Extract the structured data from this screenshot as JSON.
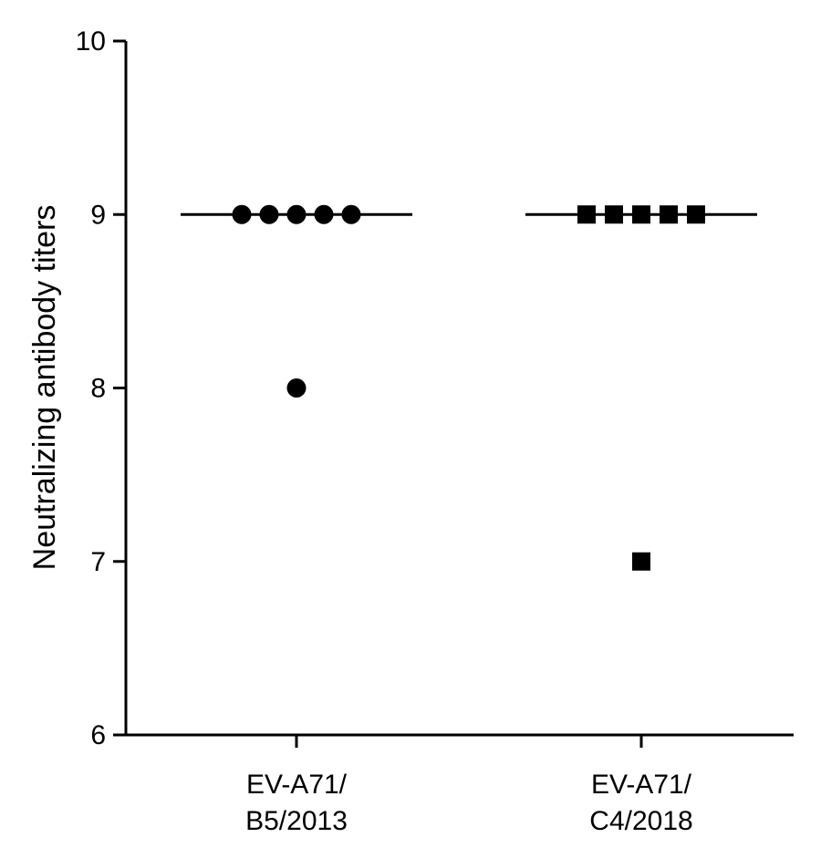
{
  "chart_data": {
    "type": "scatter",
    "title": "",
    "xlabel": "",
    "ylabel": "Neutralizing antibody titers",
    "ylim": [
      6,
      10
    ],
    "yticks": [
      6,
      7,
      8,
      9,
      10
    ],
    "grid": false,
    "legend": "none",
    "categories": [
      {
        "label_lines": [
          "EV-A71/",
          "B5/2013"
        ]
      },
      {
        "label_lines": [
          "EV-A71/",
          "C4/2018"
        ]
      }
    ],
    "series": [
      {
        "category_index": 0,
        "marker": "circle",
        "values": [
          9,
          9,
          9,
          9,
          9,
          8
        ],
        "median": 9
      },
      {
        "category_index": 1,
        "marker": "square",
        "values": [
          9,
          9,
          9,
          9,
          9,
          7
        ],
        "median": 9
      }
    ],
    "colors": {
      "marker": "#000000",
      "axis": "#000000"
    }
  }
}
